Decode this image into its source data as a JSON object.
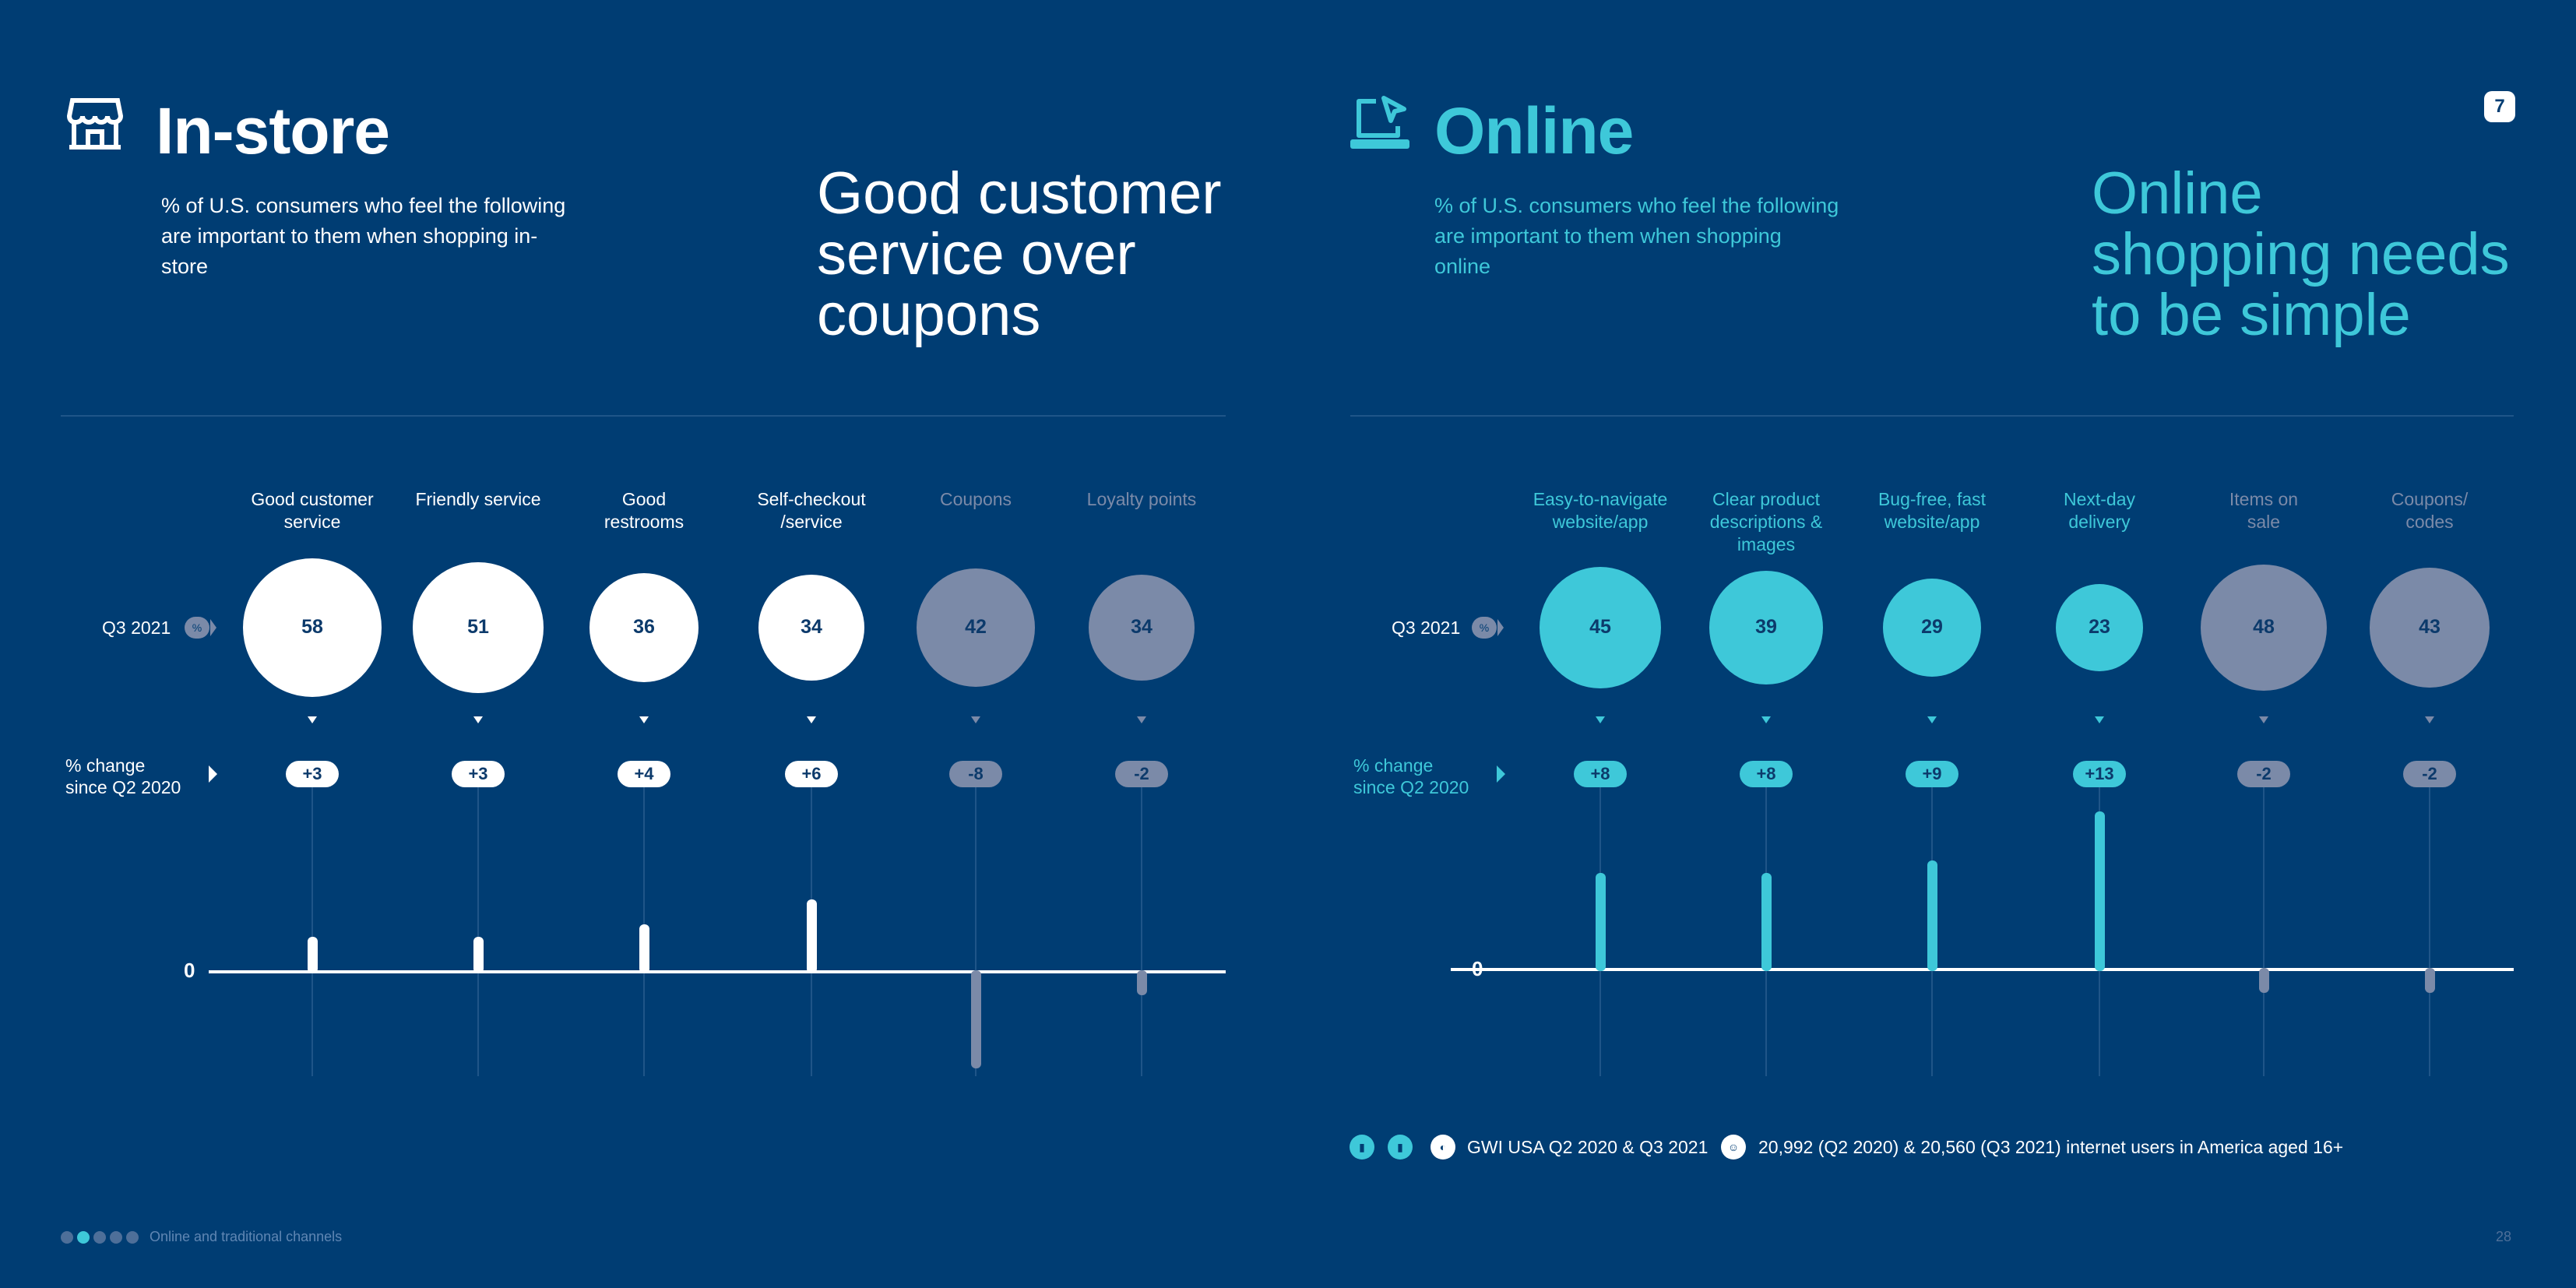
{
  "colors": {
    "background": "#003d73",
    "accent": "#3ec8d9",
    "muted": "#7b8aa8",
    "white": "#ffffff",
    "number_text": "#0c3a6b"
  },
  "page_badge": "7",
  "page_number": "28",
  "footer_nav": {
    "label": "Online and traditional channels",
    "dots": 5,
    "active_index": 1
  },
  "row_labels": {
    "q3": "Q3 2021",
    "pct_icon": "%",
    "change_line1": "% change",
    "change_line2": "since Q2 2020",
    "zero": "0"
  },
  "instore": {
    "icon": "store-icon",
    "title": "In-store",
    "description": "% of U.S. consumers who feel the following are important to them when shopping in-store",
    "headline": [
      "Good customer",
      "service over",
      "coupons"
    ],
    "items": [
      {
        "label": [
          "Good customer",
          "service"
        ],
        "value": 58,
        "change": "+3",
        "delta": 3,
        "highlight": true
      },
      {
        "label": [
          "Friendly service"
        ],
        "value": 51,
        "change": "+3",
        "delta": 3,
        "highlight": true
      },
      {
        "label": [
          "Good",
          "restrooms"
        ],
        "value": 36,
        "change": "+4",
        "delta": 4,
        "highlight": true
      },
      {
        "label": [
          "Self-checkout",
          "/service"
        ],
        "value": 34,
        "change": "+6",
        "delta": 6,
        "highlight": true
      },
      {
        "label": [
          "Coupons"
        ],
        "value": 42,
        "change": "-8",
        "delta": -8,
        "highlight": false
      },
      {
        "label": [
          "Loyalty points"
        ],
        "value": 34,
        "change": "-2",
        "delta": -2,
        "highlight": false
      }
    ]
  },
  "online": {
    "icon": "laptop-cursor-icon",
    "title": "Online",
    "description": "% of U.S. consumers who feel the following are important to them when shopping online",
    "headline": [
      "Online",
      "shopping needs",
      "to be simple"
    ],
    "items": [
      {
        "label": [
          "Easy-to-navigate",
          "website/app"
        ],
        "value": 45,
        "change": "+8",
        "delta": 8,
        "highlight": true
      },
      {
        "label": [
          "Clear product",
          "descriptions &",
          "images"
        ],
        "value": 39,
        "change": "+8",
        "delta": 8,
        "highlight": true
      },
      {
        "label": [
          "Bug-free, fast",
          "website/app"
        ],
        "value": 29,
        "change": "+9",
        "delta": 9,
        "highlight": true
      },
      {
        "label": [
          "Next-day",
          "delivery"
        ],
        "value": 23,
        "change": "+13",
        "delta": 13,
        "highlight": true
      },
      {
        "label": [
          "Items on",
          "sale"
        ],
        "value": 48,
        "change": "-2",
        "delta": -2,
        "highlight": false
      },
      {
        "label": [
          "Coupons/",
          "codes"
        ],
        "value": 43,
        "change": "-2",
        "delta": -2,
        "highlight": false
      }
    ]
  },
  "footer": {
    "source": "GWI USA Q2 2020 & Q3 2021",
    "sample": "20,992 (Q2 2020) & 20,560 (Q3 2021) internet users in America aged 16+"
  }
}
